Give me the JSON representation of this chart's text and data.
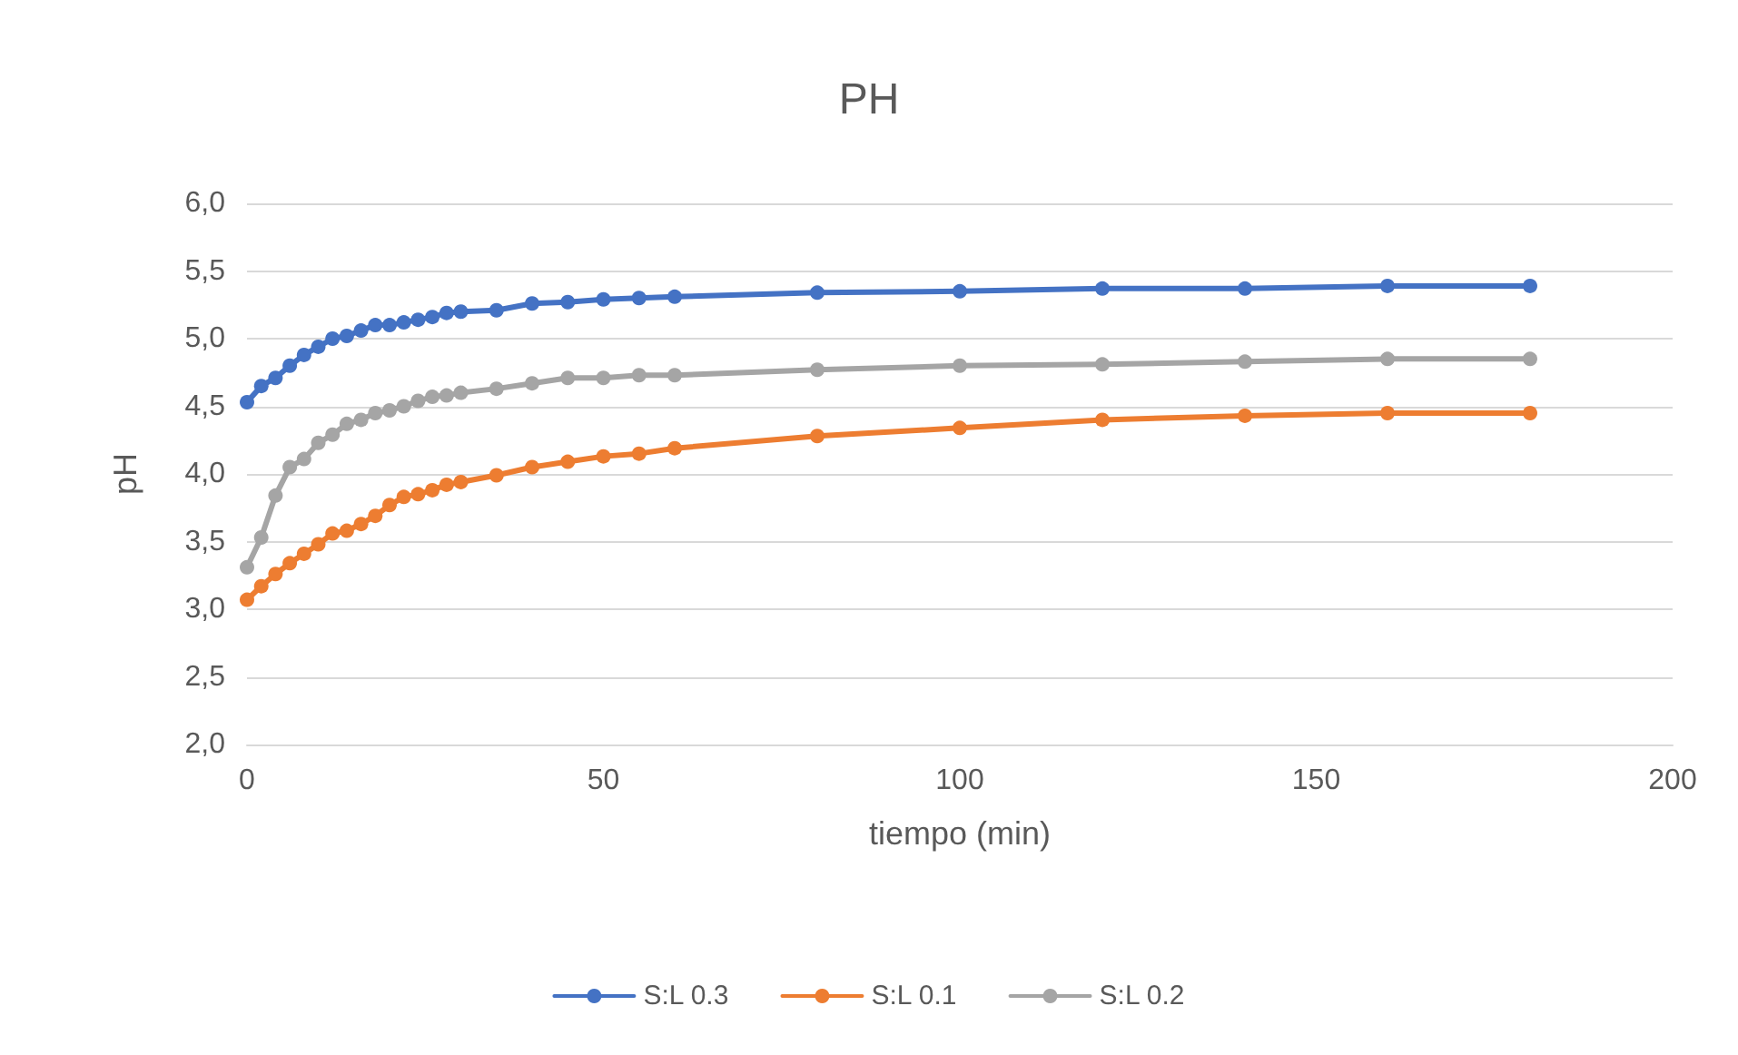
{
  "chart_data": {
    "type": "line",
    "title": "PH",
    "xlabel": "tiempo (min)",
    "ylabel": "pH",
    "x": [
      0,
      2,
      4,
      6,
      8,
      10,
      12,
      14,
      16,
      18,
      20,
      22,
      24,
      26,
      28,
      30,
      35,
      40,
      45,
      50,
      55,
      60,
      80,
      100,
      120,
      140,
      160,
      180
    ],
    "series": [
      {
        "name": "S:L 0.3",
        "color": "#4472c4",
        "values": [
          4.53,
          4.65,
          4.71,
          4.8,
          4.88,
          4.94,
          5.0,
          5.02,
          5.06,
          5.1,
          5.1,
          5.12,
          5.14,
          5.16,
          5.19,
          5.2,
          5.21,
          5.26,
          5.27,
          5.29,
          5.3,
          5.31,
          5.34,
          5.35,
          5.37,
          5.37,
          5.39,
          5.39
        ]
      },
      {
        "name": "S:L 0.1",
        "color": "#ed7d31",
        "values": [
          3.07,
          3.17,
          3.26,
          3.34,
          3.41,
          3.48,
          3.56,
          3.58,
          3.63,
          3.69,
          3.77,
          3.83,
          3.85,
          3.88,
          3.92,
          3.94,
          3.99,
          4.05,
          4.09,
          4.13,
          4.15,
          4.19,
          4.28,
          4.34,
          4.4,
          4.43,
          4.45,
          4.45
        ]
      },
      {
        "name": "S:L 0.2",
        "color": "#a5a5a5",
        "values": [
          3.31,
          3.53,
          3.84,
          4.05,
          4.11,
          4.23,
          4.29,
          4.37,
          4.4,
          4.45,
          4.47,
          4.5,
          4.54,
          4.57,
          4.58,
          4.6,
          4.63,
          4.67,
          4.71,
          4.71,
          4.73,
          4.73,
          4.77,
          4.8,
          4.81,
          4.83,
          4.85,
          4.85
        ]
      }
    ],
    "xlim": [
      0,
      200
    ],
    "xticks": [
      0,
      50,
      100,
      150,
      200
    ],
    "ylim": [
      2,
      6
    ],
    "yticks": [
      {
        "value": 2,
        "label": "2,0"
      },
      {
        "value": 2.5,
        "label": "2,5"
      },
      {
        "value": 3,
        "label": "3,0"
      },
      {
        "value": 3.5,
        "label": "3,5"
      },
      {
        "value": 4,
        "label": "4,0"
      },
      {
        "value": 4.5,
        "label": "4,5"
      },
      {
        "value": 5,
        "label": "5,0"
      },
      {
        "value": 5.5,
        "label": "5,5"
      },
      {
        "value": 6,
        "label": "6,0"
      }
    ],
    "grid": "y",
    "legend": "bottom",
    "marker": "circle",
    "line_style": "solid"
  }
}
